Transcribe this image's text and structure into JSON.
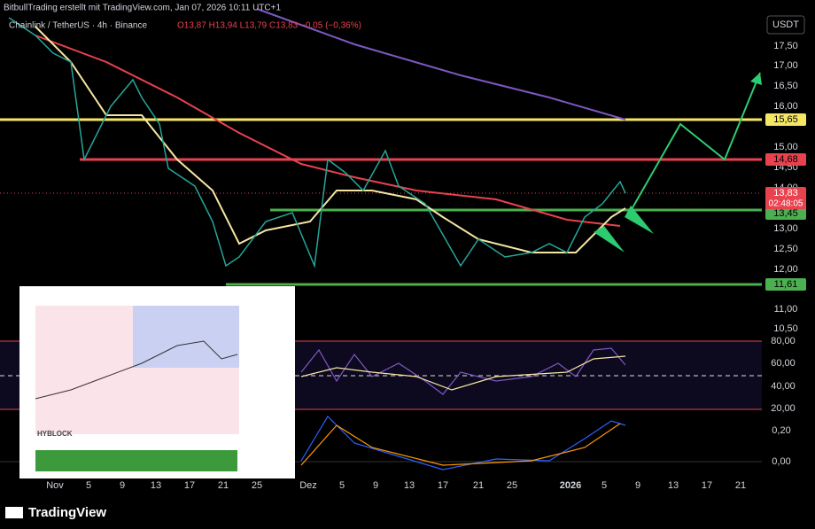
{
  "header": {
    "author": "BitbullTrading erstellt mit TradingView.com, Jan 07, 2026 10:11 UTC+1",
    "symbol": "Chainlink / TetherUS · 4h · Binance",
    "ohlc": "O13,87 H13,94 L13,79 C13,83 −0,05 (−0,36%)"
  },
  "currency": "USDT",
  "price_axis": [
    "17,50",
    "17,00",
    "16,50",
    "16,00",
    "15,00",
    "14,50",
    "14,00",
    "13,00",
    "12,50",
    "12,00",
    "11,00",
    "10,50"
  ],
  "levels": [
    "15,65",
    "14,68",
    "13,83",
    "13,45",
    "11,61"
  ],
  "countdown": "02:48:05",
  "rsi_axis": [
    "80,00",
    "60,00",
    "40,00",
    "20,00"
  ],
  "macd_axis": [
    "0,20",
    "0,00"
  ],
  "time_axis": [
    "Nov",
    "5",
    "9",
    "13",
    "17",
    "21",
    "25",
    "Dez",
    "5",
    "9",
    "13",
    "17",
    "21",
    "25",
    "2026",
    "5",
    "9",
    "13",
    "17",
    "21"
  ],
  "inset": {
    "title": "HYBLOCK"
  },
  "footer": "TradingView"
}
